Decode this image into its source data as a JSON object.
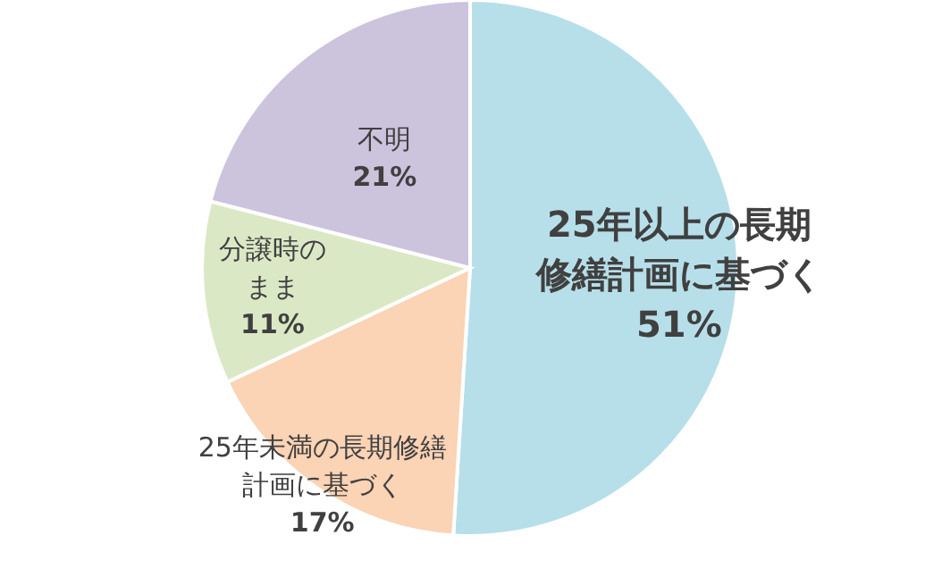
{
  "chart_data": {
    "type": "pie",
    "categories": [
      "25年以上の長期修繕計画に基づく",
      "25年未満の長期修繕計画に基づく",
      "分譲時のまま",
      "不明"
    ],
    "values": [
      51,
      17,
      11,
      21
    ],
    "colors": [
      "#b7dfe9",
      "#fbd3b5",
      "#dbe8c5",
      "#ccc3dd"
    ],
    "value_labels": [
      "51%",
      "17%",
      "11%",
      "21%"
    ]
  }
}
